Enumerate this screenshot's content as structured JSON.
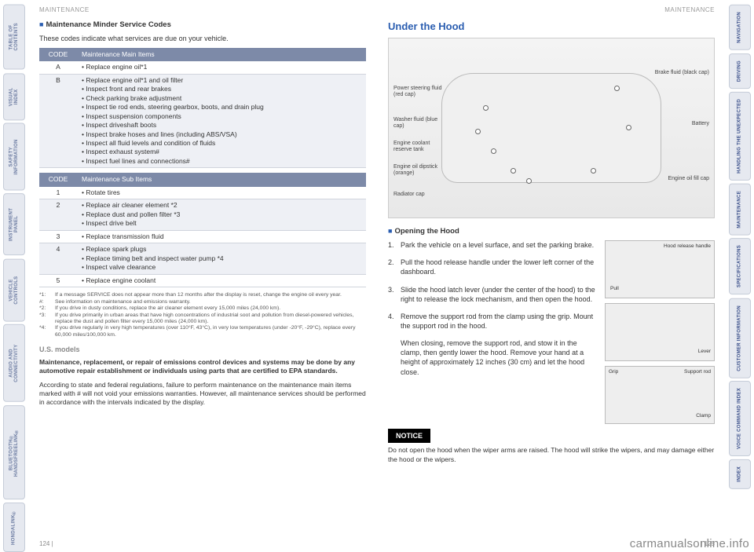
{
  "header": "MAINTENANCE",
  "leftTabs": [
    "TABLE OF CONTENTS",
    "VISUAL INDEX",
    "SAFETY INFORMATION",
    "INSTRUMENT PANEL",
    "VEHICLE CONTROLS",
    "AUDIO AND CONNECTIVITY",
    "BLUETOOTH® HANDSFREELINK®",
    "HONDALINK®"
  ],
  "rightTabs": [
    "NAVIGATION",
    "DRIVING",
    "HANDLING THE UNEXPECTED",
    "MAINTENANCE",
    "SPECIFICATIONS",
    "CUSTOMER INFORMATION",
    "VOICE COMMAND INDEX",
    "INDEX"
  ],
  "left": {
    "subheading": "Maintenance Minder Service Codes",
    "intro": "These codes indicate what services are due on your vehicle.",
    "mainTable": {
      "headers": [
        "CODE",
        "Maintenance Main Items"
      ],
      "rows": [
        {
          "code": "A",
          "items": [
            "Replace engine oil*1"
          ],
          "alt": false
        },
        {
          "code": "B",
          "items": [
            "Replace engine oil*1 and oil filter",
            "Inspect front and rear brakes",
            "Check parking brake adjustment",
            "Inspect tie rod ends, steering gearbox, boots, and drain plug",
            "Inspect suspension components",
            "Inspect driveshaft boots",
            "Inspect brake hoses and lines (including ABS/VSA)",
            "Inspect all fluid levels and condition of fluids",
            "Inspect exhaust system#",
            "Inspect fuel lines and connections#"
          ],
          "alt": true
        }
      ]
    },
    "subTable": {
      "headers": [
        "CODE",
        "Maintenance Sub Items"
      ],
      "rows": [
        {
          "code": "1",
          "items": [
            "Rotate tires"
          ],
          "alt": false
        },
        {
          "code": "2",
          "items": [
            "Replace air cleaner element *2",
            "Replace dust and pollen filter *3",
            "Inspect drive belt"
          ],
          "alt": true
        },
        {
          "code": "3",
          "items": [
            "Replace transmission fluid"
          ],
          "alt": false
        },
        {
          "code": "4",
          "items": [
            "Replace spark plugs",
            "Replace timing belt and inspect water pump *4",
            "Inspect valve clearance"
          ],
          "alt": true
        },
        {
          "code": "5",
          "items": [
            "Replace engine coolant"
          ],
          "alt": false
        }
      ]
    },
    "footnotes": [
      {
        "k": "*1:",
        "t": "If a message SERVICE does not appear more than 12 months after the display is reset, change the engine oil every year."
      },
      {
        "k": "#:",
        "t": "See information on maintenance and emissions warranty."
      },
      {
        "k": "*2:",
        "t": "If you drive in dusty conditions, replace the air cleaner element every 15,000 miles (24,000 km)."
      },
      {
        "k": "*3:",
        "t": "If you drive primarily in urban areas that have high concentrations of industrial soot and pollution from diesel-powered vehicles, replace the dust and pollen filter every 15,000 miles (24,000 km)."
      },
      {
        "k": "*4:",
        "t": "If you drive regularly in very high temperatures (over 110°F, 43°C), in very low temperatures (under -20°F, -29°C), replace every 60,000 miles/100,000 km."
      }
    ],
    "usTitle": "U.S. models",
    "boldPara": "Maintenance, replacement, or repair of emissions control devices and systems may be done by any automotive repair establishment or individuals using parts that are certified to EPA standards.",
    "bodyPara": "According to state and federal regulations, failure to perform maintenance on the maintenance main items marked with # will not void your emissions warranties. However, all maintenance services should be performed in accordance with the intervals indicated by the display.",
    "pageNum": "124  |"
  },
  "right": {
    "title": "Under the Hood",
    "diagramLabels": {
      "powerSteering": "Power steering fluid (red cap)",
      "washer": "Washer fluid (blue cap)",
      "coolant": "Engine coolant reserve tank",
      "dipstick": "Engine oil dipstick (orange)",
      "radiator": "Radiator cap",
      "brakeFluid": "Brake fluid (black cap)",
      "battery": "Battery",
      "oilFill": "Engine oil fill cap"
    },
    "openingHeading": "Opening the Hood",
    "steps": [
      "Park the vehicle on a level surface, and set the parking brake.",
      "Pull the hood release handle under the lower left corner of the dashboard.",
      "Slide the hood latch lever (under the center of the hood) to the right to release the lock mechanism, and then open the hood.",
      "Remove the support rod from the clamp using the grip. Mount the support rod in the hood."
    ],
    "closing": "When closing, remove the support rod, and stow it in the clamp, then gently lower the hood. Remove your hand at a height of approximately 12 inches (30 cm) and let the hood close.",
    "noticeLabel": "NOTICE",
    "noticeText": "Do not open the hood when the wiper arms are raised. The hood will strike the wipers, and may damage either the hood or the wipers.",
    "figLabels": {
      "hoodRelease": "Hood release handle",
      "pull": "Pull",
      "lever": "Lever",
      "grip": "Grip",
      "supportRod": "Support rod",
      "clamp": "Clamp"
    },
    "pageNum": "|  125"
  },
  "watermark": "carmanualsonline.info"
}
